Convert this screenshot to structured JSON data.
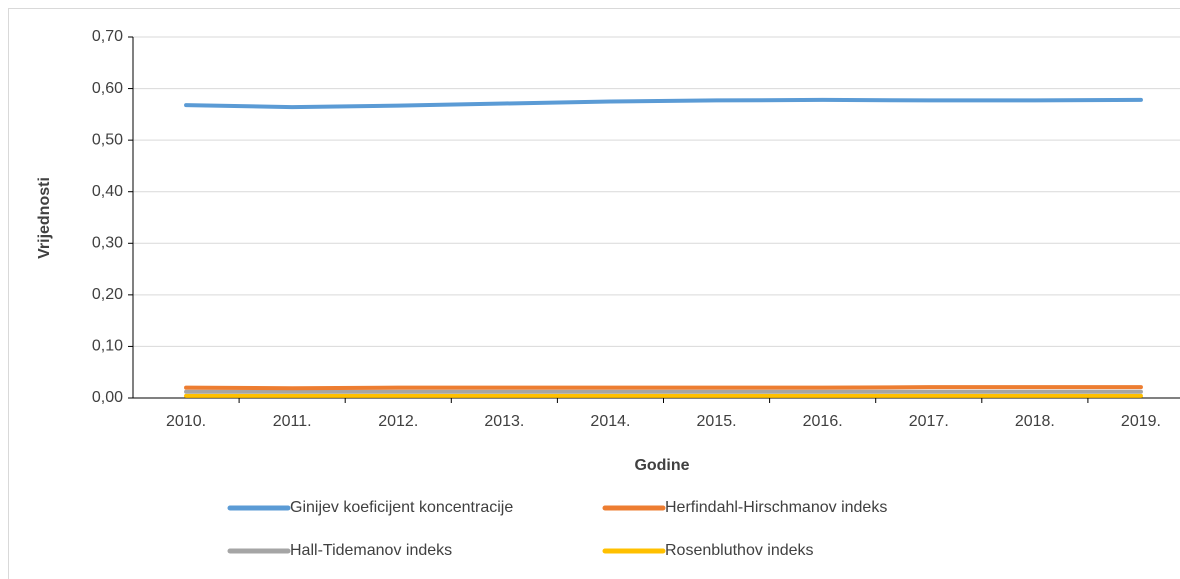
{
  "chart_data": {
    "type": "line",
    "xlabel": "Godine",
    "ylabel": "Vrijednosti",
    "categories": [
      "2010.",
      "2011.",
      "2012.",
      "2013.",
      "2014.",
      "2015.",
      "2016.",
      "2017.",
      "2018.",
      "2019."
    ],
    "series": [
      {
        "name": "Ginijev koeficijent koncentracije",
        "color": "#5b9bd5",
        "values": [
          0.568,
          0.564,
          0.567,
          0.571,
          0.575,
          0.577,
          0.578,
          0.577,
          0.577,
          0.578
        ]
      },
      {
        "name": "Herfindahl-Hirschmanov indeks",
        "color": "#ed7d31",
        "values": [
          0.02,
          0.019,
          0.02,
          0.02,
          0.02,
          0.02,
          0.02,
          0.021,
          0.021,
          0.021
        ]
      },
      {
        "name": "Hall-Tidemanov indeks",
        "color": "#a5a5a5",
        "values": [
          0.012,
          0.012,
          0.012,
          0.012,
          0.012,
          0.012,
          0.012,
          0.012,
          0.012,
          0.012
        ]
      },
      {
        "name": "Rosenbluthov indeks",
        "color": "#ffc000",
        "values": [
          0.004,
          0.004,
          0.004,
          0.004,
          0.004,
          0.004,
          0.004,
          0.004,
          0.004,
          0.004
        ]
      }
    ],
    "ylim": [
      0,
      0.7
    ],
    "yticks": [
      {
        "value": 0,
        "label": "0,00"
      },
      {
        "value": 0.1,
        "label": "0,10"
      },
      {
        "value": 0.2,
        "label": "0,20"
      },
      {
        "value": 0.3,
        "label": "0,30"
      },
      {
        "value": 0.4,
        "label": "0,40"
      },
      {
        "value": 0.5,
        "label": "0,50"
      },
      {
        "value": 0.6,
        "label": "0,60"
      },
      {
        "value": 0.7,
        "label": "0,70"
      }
    ],
    "grid": true,
    "legend": "bottom"
  }
}
